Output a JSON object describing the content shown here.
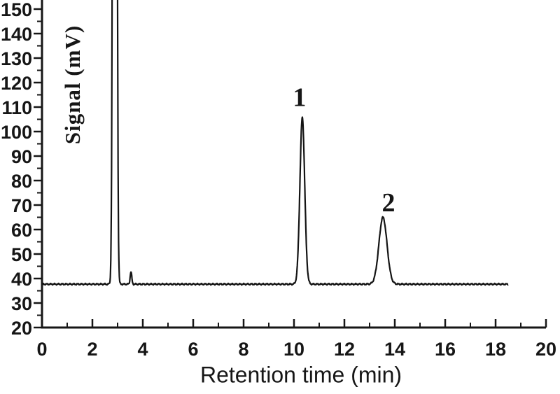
{
  "page": {
    "background": "#ffffff"
  },
  "chart_data": {
    "type": "line",
    "title": "",
    "xlabel": "Retention time (min)",
    "ylabel": "Signal (mV)",
    "xlim": [
      0,
      20
    ],
    "ylim_visible": [
      20,
      155
    ],
    "x_major_ticks": [
      0,
      2,
      4,
      6,
      8,
      10,
      12,
      14,
      16,
      18,
      20
    ],
    "x_minor_ticks": [
      1,
      3,
      5,
      7,
      9,
      11,
      13,
      15,
      17,
      19
    ],
    "y_major_ticks": [
      20,
      30,
      40,
      50,
      60,
      70,
      80,
      90,
      100,
      110,
      120,
      130,
      140,
      150
    ],
    "y_minor_ticks": [
      25,
      35,
      45,
      55,
      65,
      75,
      85,
      95,
      105,
      115,
      125,
      135,
      145
    ],
    "grid": false,
    "legend": null,
    "line_color": "#141414",
    "axis_color": "#161616",
    "background": "#ffffff",
    "baseline_mv": 37.7,
    "trace_range_min": [
      0,
      18.5
    ],
    "peaks": [
      {
        "id": "injection-peak",
        "label": "",
        "retention_min": 2.89,
        "amplitude_mv": 962,
        "sigma_min": 0.053,
        "apex_clipped_above_mv": 155
      },
      {
        "id": "small-peak",
        "label": "",
        "retention_min": 3.53,
        "amplitude_mv": 5,
        "sigma_min": 0.032,
        "apex_mv": 42.7
      },
      {
        "id": "peak-1",
        "label": "1",
        "retention_min": 10.33,
        "amplitude_mv": 68,
        "sigma_min": 0.095,
        "apex_mv": 105.7
      },
      {
        "id": "peak-2",
        "label": "2",
        "retention_min": 13.53,
        "amplitude_mv": 27.3,
        "sigma_min": 0.16,
        "apex_mv": 65
      }
    ],
    "annotations": [
      {
        "text": "1",
        "x_min": 10.22,
        "y_mv": 110.5
      },
      {
        "text": "2",
        "x_min": 13.75,
        "y_mv": 67.5
      }
    ]
  }
}
